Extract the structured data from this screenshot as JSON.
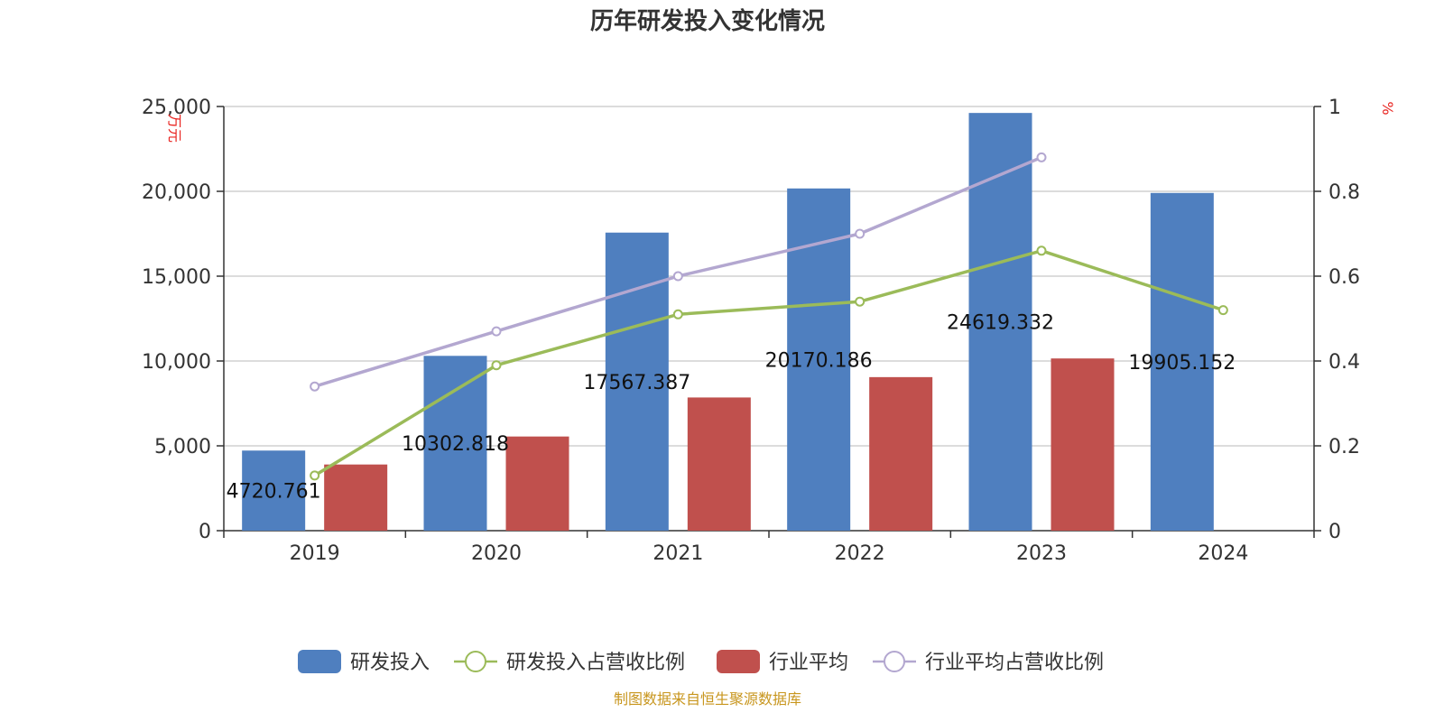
{
  "chart_data": {
    "type": "bar",
    "title": "历年研发投入变化情况",
    "categories": [
      "2019",
      "2020",
      "2021",
      "2022",
      "2023",
      "2024"
    ],
    "left_axis": {
      "unit": "万元",
      "ylim": [
        0,
        25000
      ],
      "ticks": [
        "0",
        "5,000",
        "10,000",
        "15,000",
        "20,000",
        "25,000"
      ],
      "tick_values": [
        0,
        5000,
        10000,
        15000,
        20000,
        25000
      ]
    },
    "right_axis": {
      "unit": "%",
      "ylim": [
        0,
        1
      ],
      "ticks": [
        "0",
        "0.2",
        "0.4",
        "0.6",
        "0.8",
        "1"
      ],
      "tick_values": [
        0,
        0.2,
        0.4,
        0.6,
        0.8,
        1
      ]
    },
    "series": [
      {
        "name": "研发投入",
        "kind": "bar",
        "axis": "left",
        "color": "#4f7fbf",
        "values": [
          4720.761,
          10302.818,
          17567.387,
          20170.186,
          24619.332,
          19905.152
        ],
        "labels": [
          "4720.761",
          "10302.818",
          "17567.387",
          "20170.186",
          "24619.332",
          "19905.152"
        ]
      },
      {
        "name": "研发投入占营收比例",
        "kind": "line",
        "axis": "right",
        "color": "#9bbb59",
        "values": [
          0.13,
          0.39,
          0.51,
          0.54,
          0.66,
          0.52
        ]
      },
      {
        "name": "行业平均",
        "kind": "bar",
        "axis": "left",
        "color": "#c0504d",
        "values": [
          3900,
          5550,
          7850,
          9050,
          10150,
          null
        ]
      },
      {
        "name": "行业平均占营收比例",
        "kind": "line",
        "axis": "right",
        "color": "#b3a7d0",
        "values": [
          0.34,
          0.47,
          0.6,
          0.7,
          0.88,
          null
        ]
      }
    ],
    "grid": true,
    "legend_position": "bottom"
  },
  "source_text": "制图数据来自恒生聚源数据库"
}
